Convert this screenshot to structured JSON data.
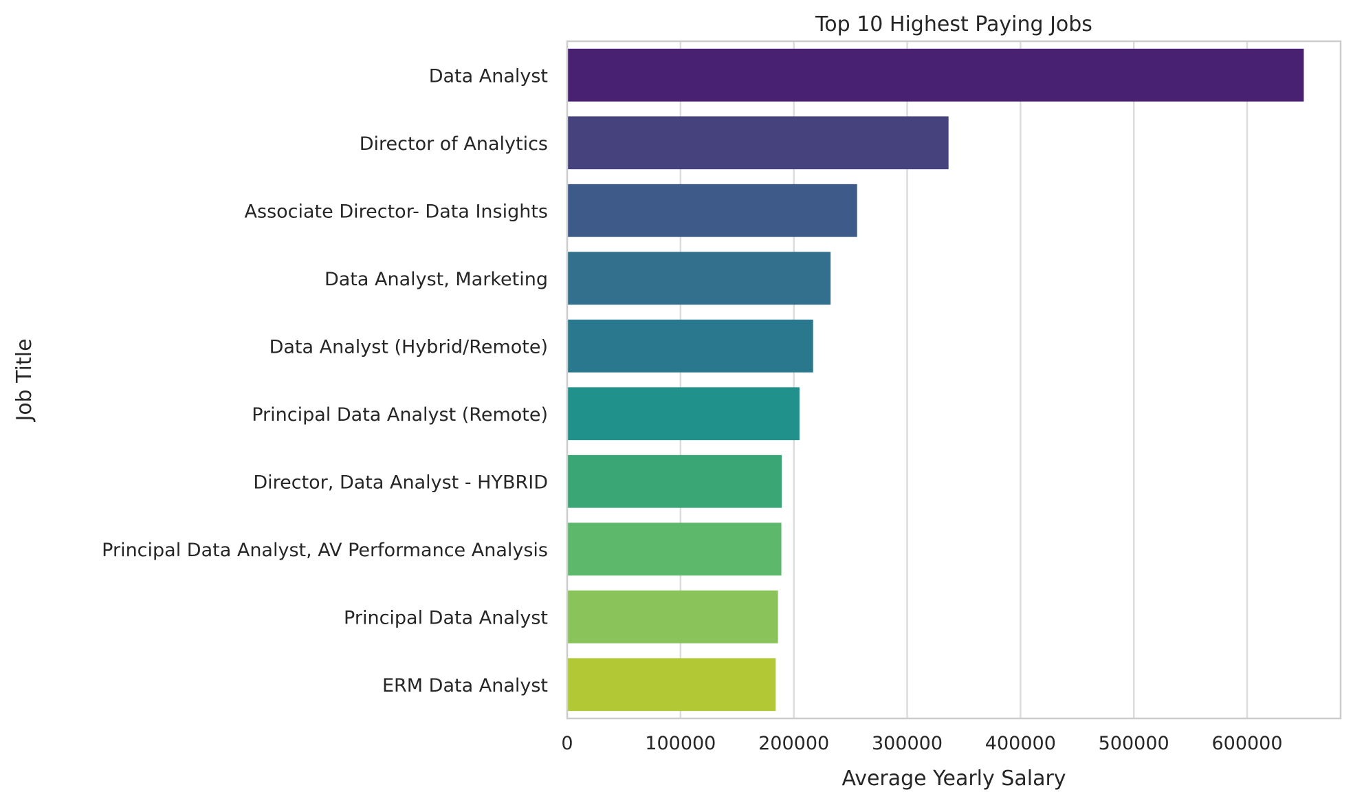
{
  "chart_data": {
    "type": "bar",
    "orientation": "horizontal",
    "title": "Top 10 Highest Paying Jobs",
    "xlabel": "Average Yearly Salary",
    "ylabel": "Job Title",
    "categories": [
      "Data Analyst",
      "Director of Analytics",
      "Associate Director- Data Insights",
      "Data Analyst, Marketing",
      "Data Analyst (Hybrid/Remote)",
      "Principal Data Analyst (Remote)",
      "Director, Data Analyst - HYBRID",
      "Principal Data Analyst, AV Performance Analysis",
      "Principal Data Analyst",
      "ERM Data Analyst"
    ],
    "values": [
      650000,
      336500,
      255829.5,
      232423,
      217000,
      205000,
      189309,
      189000,
      186000,
      184000
    ],
    "colors": [
      "#482173",
      "#46427d",
      "#3e5a89",
      "#33708e",
      "#2a788e",
      "#21918c",
      "#3aa575",
      "#5eb86c",
      "#8ac35a",
      "#b2c935"
    ],
    "xlim": [
      0,
      682500
    ],
    "xticks": [
      0,
      100000,
      200000,
      300000,
      400000,
      500000,
      600000
    ],
    "xtick_labels": [
      "0",
      "100000",
      "200000",
      "300000",
      "400000",
      "500000",
      "600000"
    ],
    "grid": "vertical",
    "legend": "none"
  }
}
